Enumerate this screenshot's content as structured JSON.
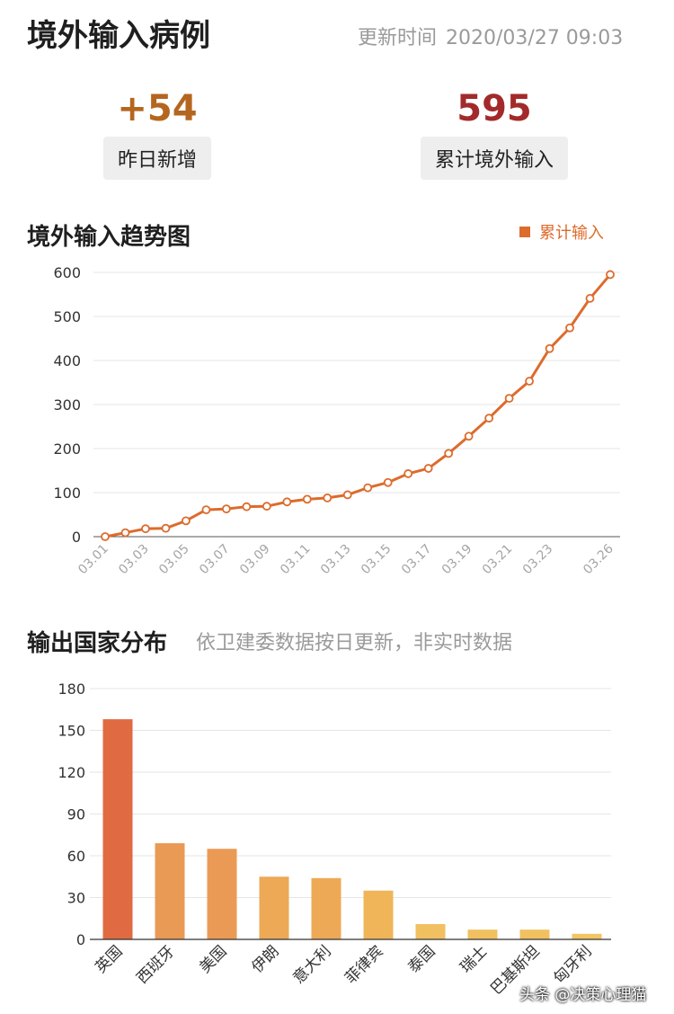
{
  "header": {
    "title": "境外输入病例",
    "update_label": "更新时间",
    "update_time": "2020/03/27 09:03"
  },
  "stats": {
    "new": {
      "value": "+54",
      "label": "昨日新增",
      "color": "#b5661e"
    },
    "total": {
      "value": "595",
      "label": "累计境外输入",
      "color": "#a32a2a"
    }
  },
  "trend": {
    "title": "境外输入趋势图",
    "legend": "累计输入",
    "color": "#dd6b2c"
  },
  "countries": {
    "title": "输出国家分布",
    "note": "依卫建委数据按日更新，非实时数据"
  },
  "watermark": "头条 @决策心理猫",
  "chart_data": [
    {
      "type": "line",
      "series": [
        {
          "name": "累计输入",
          "x": [
            "03.01",
            "03.02",
            "03.03",
            "03.04",
            "03.05",
            "03.06",
            "03.07",
            "03.08",
            "03.09",
            "03.10",
            "03.11",
            "03.12",
            "03.13",
            "03.14",
            "03.15",
            "03.16",
            "03.17",
            "03.18",
            "03.19",
            "03.20",
            "03.21",
            "03.22",
            "03.23",
            "03.24",
            "03.25",
            "03.26"
          ],
          "values": [
            0,
            9,
            18,
            19,
            36,
            61,
            63,
            68,
            69,
            79,
            85,
            88,
            95,
            111,
            123,
            143,
            155,
            189,
            228,
            269,
            314,
            353,
            427,
            474,
            541,
            595
          ]
        }
      ],
      "tick_labels": [
        "03.01",
        "03.03",
        "03.05",
        "03.07",
        "03.09",
        "03.11",
        "03.13",
        "03.15",
        "03.17",
        "03.19",
        "03.21",
        "03.23",
        "03.26"
      ],
      "ylim": [
        0,
        600
      ],
      "yticks": [
        0,
        100,
        200,
        300,
        400,
        500,
        600
      ],
      "grid": true,
      "legend_position": "top-right"
    },
    {
      "type": "bar",
      "categories": [
        "英国",
        "西班牙",
        "美国",
        "伊朗",
        "意大利",
        "菲律宾",
        "泰国",
        "瑞士",
        "巴基斯坦",
        "匈牙利"
      ],
      "values": [
        158,
        69,
        65,
        45,
        44,
        35,
        11,
        7,
        7,
        4
      ],
      "colors": [
        "#e06a42",
        "#e99a55",
        "#eb9a55",
        "#eda956",
        "#eea956",
        "#efb558",
        "#f1c060",
        "#f1c060",
        "#f1c060",
        "#f2c462"
      ],
      "ylim": [
        0,
        180
      ],
      "yticks": [
        0,
        30,
        60,
        90,
        120,
        150,
        180
      ],
      "grid": true
    }
  ]
}
